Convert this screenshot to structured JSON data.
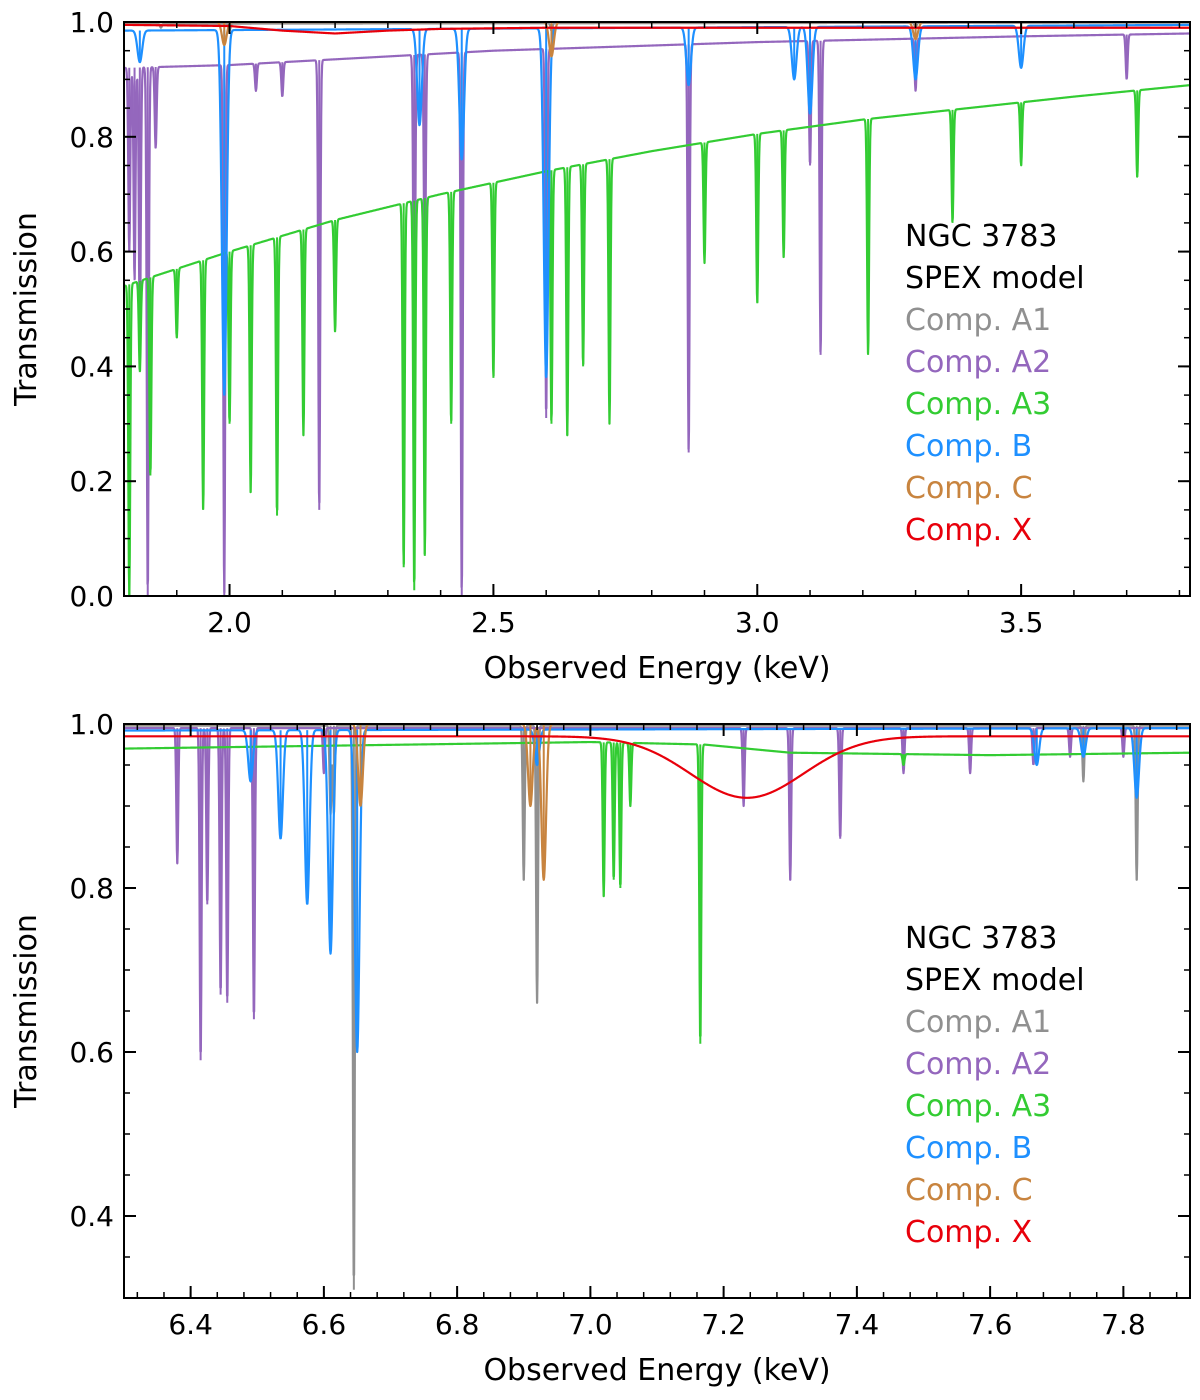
{
  "chart_data": [
    {
      "type": "line",
      "panel": "top",
      "title": "",
      "xlabel": "Observed Energy (keV)",
      "ylabel": "Transmission",
      "xlim": [
        1.8,
        3.82
      ],
      "ylim": [
        0.0,
        1.0
      ],
      "xticks": [
        2.0,
        2.5,
        3.0,
        3.5
      ],
      "xtick_labels": [
        "2.0",
        "2.5",
        "3.0",
        "3.5"
      ],
      "yticks": [
        0.0,
        0.2,
        0.4,
        0.6,
        0.8,
        1.0
      ],
      "ytick_labels": [
        "0.0",
        "0.2",
        "0.4",
        "0.6",
        "0.8",
        "1.0"
      ],
      "grid": false,
      "legend_title": [
        "NGC 3783",
        "SPEX model"
      ],
      "legend_position": "right-middle",
      "series": [
        {
          "name": "Comp. A1",
          "color": "#909090",
          "continuum": [
            [
              1.8,
              0.997
            ],
            [
              3.82,
              0.999
            ]
          ],
          "lines": [
            [
              1.87,
              0.99
            ],
            [
              2.0,
              0.985
            ],
            [
              2.61,
              0.985
            ],
            [
              3.3,
              0.99
            ]
          ]
        },
        {
          "name": "Comp. A2",
          "color": "#9467bd",
          "continuum": [
            [
              1.8,
              0.92
            ],
            [
              2.0,
              0.925
            ],
            [
              2.5,
              0.95
            ],
            [
              3.0,
              0.965
            ],
            [
              3.5,
              0.975
            ],
            [
              3.82,
              0.98
            ]
          ],
          "lines": [
            [
              1.81,
              0.6
            ],
            [
              1.82,
              0.55
            ],
            [
              1.83,
              0.45
            ],
            [
              1.845,
              0.0
            ],
            [
              1.86,
              0.78
            ],
            [
              1.99,
              0.0
            ],
            [
              2.05,
              0.88
            ],
            [
              2.1,
              0.87
            ],
            [
              2.17,
              0.15
            ],
            [
              2.35,
              0.38
            ],
            [
              2.37,
              0.55
            ],
            [
              2.44,
              0.0
            ],
            [
              2.6,
              0.31
            ],
            [
              2.87,
              0.25
            ],
            [
              3.1,
              0.75
            ],
            [
              3.12,
              0.42
            ],
            [
              3.3,
              0.88
            ],
            [
              3.7,
              0.9
            ]
          ]
        },
        {
          "name": "Comp. A3",
          "color": "#33cc33",
          "continuum": [
            [
              1.8,
              0.54
            ],
            [
              2.0,
              0.6
            ],
            [
              2.2,
              0.655
            ],
            [
              2.4,
              0.7
            ],
            [
              2.6,
              0.74
            ],
            [
              2.8,
              0.775
            ],
            [
              3.0,
              0.805
            ],
            [
              3.2,
              0.83
            ],
            [
              3.4,
              0.85
            ],
            [
              3.6,
              0.87
            ],
            [
              3.82,
              0.89
            ]
          ],
          "lines": [
            [
              1.81,
              0.0
            ],
            [
              1.83,
              0.39
            ],
            [
              1.85,
              0.21
            ],
            [
              1.9,
              0.45
            ],
            [
              1.95,
              0.15
            ],
            [
              2.0,
              0.3
            ],
            [
              2.04,
              0.18
            ],
            [
              2.09,
              0.14
            ],
            [
              2.14,
              0.28
            ],
            [
              2.2,
              0.46
            ],
            [
              2.33,
              0.05
            ],
            [
              2.35,
              0.01
            ],
            [
              2.37,
              0.07
            ],
            [
              2.42,
              0.3
            ],
            [
              2.5,
              0.38
            ],
            [
              2.61,
              0.3
            ],
            [
              2.64,
              0.28
            ],
            [
              2.67,
              0.4
            ],
            [
              2.72,
              0.3
            ],
            [
              2.9,
              0.58
            ],
            [
              3.0,
              0.51
            ],
            [
              3.05,
              0.59
            ],
            [
              3.21,
              0.42
            ],
            [
              3.37,
              0.65
            ],
            [
              3.5,
              0.75
            ],
            [
              3.72,
              0.73
            ]
          ]
        },
        {
          "name": "Comp. B",
          "color": "#1e90ff",
          "continuum": [
            [
              1.8,
              0.985
            ],
            [
              3.82,
              0.995
            ]
          ],
          "lines": [
            [
              1.83,
              0.93
            ],
            [
              1.99,
              0.35
            ],
            [
              2.36,
              0.82
            ],
            [
              2.44,
              0.76
            ],
            [
              2.6,
              0.38
            ],
            [
              2.87,
              0.89
            ],
            [
              3.07,
              0.9
            ],
            [
              3.1,
              0.84
            ],
            [
              3.3,
              0.9
            ],
            [
              3.5,
              0.92
            ]
          ]
        },
        {
          "name": "Comp. C",
          "color": "#c8843f",
          "continuum": [
            [
              1.8,
              1.0
            ],
            [
              3.82,
              1.0
            ]
          ],
          "lines": [
            [
              1.99,
              0.96
            ],
            [
              2.61,
              0.94
            ],
            [
              3.3,
              0.97
            ]
          ]
        },
        {
          "name": "Comp. X",
          "color": "#e8000b",
          "continuum": [
            [
              1.8,
              0.995
            ],
            [
              2.0,
              0.993
            ],
            [
              2.1,
              0.985
            ],
            [
              2.2,
              0.98
            ],
            [
              2.3,
              0.985
            ],
            [
              2.4,
              0.988
            ],
            [
              2.6,
              0.99
            ],
            [
              3.0,
              0.99
            ],
            [
              3.82,
              0.99
            ]
          ],
          "lines": []
        }
      ]
    },
    {
      "type": "line",
      "panel": "bottom",
      "title": "",
      "xlabel": "Observed Energy (keV)",
      "ylabel": "Transmission",
      "xlim": [
        6.3,
        7.9
      ],
      "ylim": [
        0.3,
        1.0
      ],
      "xticks": [
        6.4,
        6.6,
        6.8,
        7.0,
        7.2,
        7.4,
        7.6,
        7.8
      ],
      "xtick_labels": [
        "6.4",
        "6.6",
        "6.8",
        "7.0",
        "7.2",
        "7.4",
        "7.6",
        "7.8"
      ],
      "yticks": [
        0.4,
        0.6,
        0.8,
        1.0
      ],
      "ytick_labels": [
        "0.4",
        "0.6",
        "0.8",
        "1.0"
      ],
      "grid": false,
      "legend_title": [
        "NGC 3783",
        "SPEX model"
      ],
      "legend_position": "right-middle",
      "series": [
        {
          "name": "Comp. A1",
          "color": "#909090",
          "continuum": [
            [
              6.3,
              0.998
            ],
            [
              7.9,
              0.998
            ]
          ],
          "lines": [
            [
              6.61,
              0.89
            ],
            [
              6.615,
              0.89
            ],
            [
              6.645,
              0.31
            ],
            [
              6.9,
              0.81
            ],
            [
              6.92,
              0.66
            ],
            [
              7.74,
              0.93
            ],
            [
              7.82,
              0.81
            ]
          ]
        },
        {
          "name": "Comp. A2",
          "color": "#9467bd",
          "continuum": [
            [
              6.3,
              0.995
            ],
            [
              7.9,
              0.995
            ]
          ],
          "lines": [
            [
              6.38,
              0.83
            ],
            [
              6.415,
              0.59
            ],
            [
              6.425,
              0.78
            ],
            [
              6.445,
              0.67
            ],
            [
              6.455,
              0.66
            ],
            [
              6.495,
              0.64
            ],
            [
              6.6,
              0.94
            ],
            [
              7.23,
              0.9
            ],
            [
              7.3,
              0.81
            ],
            [
              7.375,
              0.86
            ],
            [
              7.47,
              0.94
            ],
            [
              7.57,
              0.94
            ],
            [
              7.665,
              0.95
            ],
            [
              7.72,
              0.96
            ],
            [
              7.8,
              0.96
            ]
          ]
        },
        {
          "name": "Comp. A3",
          "color": "#33cc33",
          "continuum": [
            [
              6.3,
              0.97
            ],
            [
              7.0,
              0.978
            ],
            [
              7.17,
              0.975
            ],
            [
              7.3,
              0.965
            ],
            [
              7.6,
              0.962
            ],
            [
              7.9,
              0.965
            ]
          ],
          "lines": [
            [
              7.02,
              0.79
            ],
            [
              7.035,
              0.81
            ],
            [
              7.045,
              0.8
            ],
            [
              7.06,
              0.9
            ],
            [
              7.165,
              0.61
            ],
            [
              7.47,
              0.95
            ]
          ]
        },
        {
          "name": "Comp. B",
          "color": "#1e90ff",
          "continuum": [
            [
              6.3,
              0.992
            ],
            [
              7.9,
              0.995
            ]
          ],
          "lines": [
            [
              6.49,
              0.93
            ],
            [
              6.535,
              0.86
            ],
            [
              6.575,
              0.78
            ],
            [
              6.61,
              0.72
            ],
            [
              6.65,
              0.6
            ],
            [
              6.92,
              0.95
            ],
            [
              7.67,
              0.95
            ],
            [
              7.74,
              0.96
            ],
            [
              7.82,
              0.91
            ]
          ]
        },
        {
          "name": "Comp. C",
          "color": "#c8843f",
          "continuum": [
            [
              6.3,
              1.0
            ],
            [
              7.9,
              1.0
            ]
          ],
          "lines": [
            [
              6.655,
              0.9
            ],
            [
              6.91,
              0.9
            ],
            [
              6.93,
              0.81
            ]
          ]
        },
        {
          "name": "Comp. X",
          "color": "#e8000b",
          "continuum": [
            [
              6.3,
              0.985
            ],
            [
              7.9,
              0.985
            ]
          ],
          "lines": [
            [
              7.235,
              0.91
            ]
          ]
        }
      ]
    }
  ]
}
